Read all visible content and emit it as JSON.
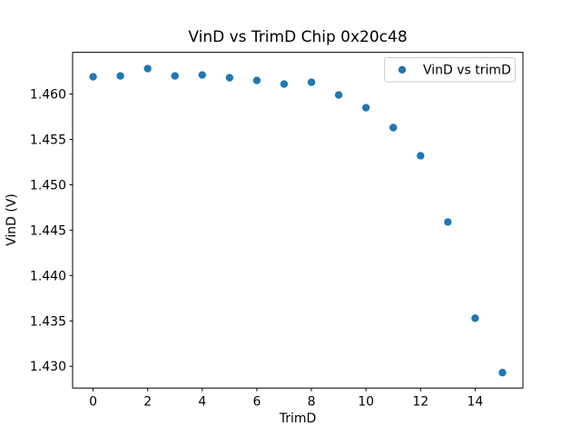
{
  "chart_data": {
    "type": "scatter",
    "title": "VinD vs TrimD Chip 0x20c48",
    "xlabel": "TrimD",
    "ylabel": "VinD (V)",
    "legend": {
      "label": "VinD vs trimD",
      "position": "upper right"
    },
    "x": [
      0,
      1,
      2,
      3,
      4,
      5,
      6,
      7,
      8,
      9,
      10,
      11,
      12,
      13,
      14,
      15
    ],
    "y": [
      1.4619,
      1.462,
      1.4628,
      1.462,
      1.4621,
      1.4618,
      1.4615,
      1.4611,
      1.4613,
      1.4599,
      1.4585,
      1.4563,
      1.4532,
      1.4459,
      1.4353,
      1.4293
    ],
    "xlim": [
      -0.75,
      15.75
    ],
    "ylim": [
      1.4276,
      1.4646
    ],
    "xticks": [
      0,
      2,
      4,
      6,
      8,
      10,
      12,
      14
    ],
    "yticks": [
      1.43,
      1.435,
      1.44,
      1.445,
      1.45,
      1.455,
      1.46
    ],
    "ytick_labels": [
      "1.430",
      "1.435",
      "1.440",
      "1.445",
      "1.450",
      "1.455",
      "1.460"
    ],
    "marker_color": "#1f77b4",
    "axis_color": "#000000",
    "legend_border_color": "#cccccc",
    "grid": false
  }
}
